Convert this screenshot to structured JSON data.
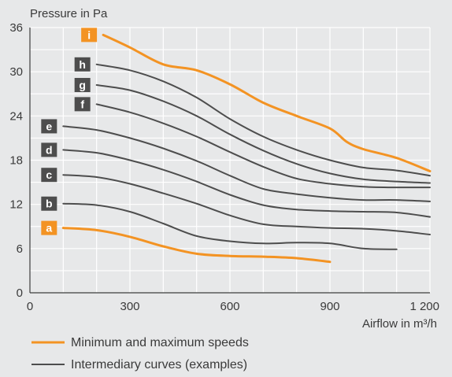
{
  "chart_data": {
    "type": "line",
    "ylabel": "Pressure in Pa",
    "xlabel": "Airflow in m³/h",
    "xlim": [
      0,
      1200
    ],
    "ylim": [
      0,
      36
    ],
    "x_ticks": [
      0,
      300,
      600,
      900,
      1200
    ],
    "x_tick_labels": [
      "0",
      "300",
      "600",
      "900",
      "1 200"
    ],
    "y_ticks": [
      0,
      6,
      12,
      18,
      24,
      30,
      36
    ],
    "y_tick_labels": [
      "0",
      "6",
      "12",
      "18",
      "24",
      "30",
      "36"
    ],
    "grid": true,
    "legend_position": "bottom",
    "colors": {
      "minmax": "#f39323",
      "intermediate": "#4d4d4d",
      "grid": "#ffffff"
    },
    "legend": [
      {
        "label": "Minimum and maximum speeds",
        "style": "minmax"
      },
      {
        "label": "Intermediary curves (examples)",
        "style": "intermediate"
      }
    ],
    "series": [
      {
        "name": "a",
        "style": "minmax",
        "x": [
          100,
          200,
          300,
          400,
          500,
          600,
          700,
          800,
          900
        ],
        "y": [
          8.8,
          8.5,
          7.6,
          6.3,
          5.3,
          5.0,
          4.9,
          4.7,
          4.2
        ]
      },
      {
        "name": "b",
        "style": "intermediate",
        "x": [
          100,
          200,
          300,
          400,
          500,
          600,
          700,
          800,
          900,
          1000,
          1100
        ],
        "y": [
          12.1,
          11.9,
          11.0,
          9.4,
          7.7,
          7.0,
          6.7,
          6.8,
          6.7,
          6.0,
          5.9
        ]
      },
      {
        "name": "c",
        "style": "intermediate",
        "x": [
          100,
          200,
          300,
          400,
          500,
          600,
          700,
          800,
          900,
          1000,
          1100,
          1200
        ],
        "y": [
          16.0,
          15.7,
          14.8,
          13.5,
          12.1,
          10.5,
          9.3,
          9.0,
          8.8,
          8.7,
          8.4,
          7.9
        ]
      },
      {
        "name": "d",
        "style": "intermediate",
        "x": [
          100,
          200,
          300,
          400,
          500,
          600,
          700,
          800,
          900,
          1000,
          1100,
          1200
        ],
        "y": [
          19.4,
          19.0,
          18.0,
          16.7,
          15.1,
          13.3,
          11.9,
          11.3,
          11.1,
          11.0,
          10.9,
          10.3
        ]
      },
      {
        "name": "e",
        "style": "intermediate",
        "x": [
          100,
          200,
          300,
          400,
          500,
          600,
          700,
          800,
          900,
          1000,
          1100,
          1200
        ],
        "y": [
          22.6,
          22.1,
          21.0,
          19.6,
          17.9,
          15.9,
          14.1,
          13.4,
          12.9,
          12.6,
          12.6,
          12.4
        ]
      },
      {
        "name": "f",
        "style": "intermediate",
        "x": [
          200,
          300,
          400,
          500,
          600,
          700,
          800,
          900,
          1000,
          1100,
          1200
        ],
        "y": [
          25.6,
          24.5,
          23.0,
          21.2,
          19.1,
          17.1,
          15.5,
          14.8,
          14.4,
          14.3,
          14.3
        ]
      },
      {
        "name": "g",
        "style": "intermediate",
        "x": [
          200,
          300,
          400,
          500,
          600,
          700,
          800,
          900,
          1000,
          1100,
          1200
        ],
        "y": [
          28.2,
          27.5,
          26.0,
          24.0,
          21.5,
          19.3,
          17.5,
          16.2,
          15.4,
          15.1,
          14.9
        ]
      },
      {
        "name": "h",
        "style": "intermediate",
        "x": [
          200,
          300,
          400,
          500,
          600,
          700,
          800,
          900,
          1000,
          1100,
          1200
        ],
        "y": [
          31.0,
          30.2,
          28.7,
          26.5,
          23.6,
          21.2,
          19.4,
          18.0,
          17.0,
          16.6,
          15.9
        ]
      },
      {
        "name": "i",
        "style": "minmax",
        "x": [
          220,
          300,
          400,
          500,
          600,
          700,
          800,
          900,
          950,
          1000,
          1100,
          1200
        ],
        "y": [
          35.0,
          33.3,
          31.0,
          30.2,
          28.3,
          25.8,
          24.0,
          22.3,
          20.5,
          19.5,
          18.3,
          16.5
        ]
      }
    ]
  }
}
